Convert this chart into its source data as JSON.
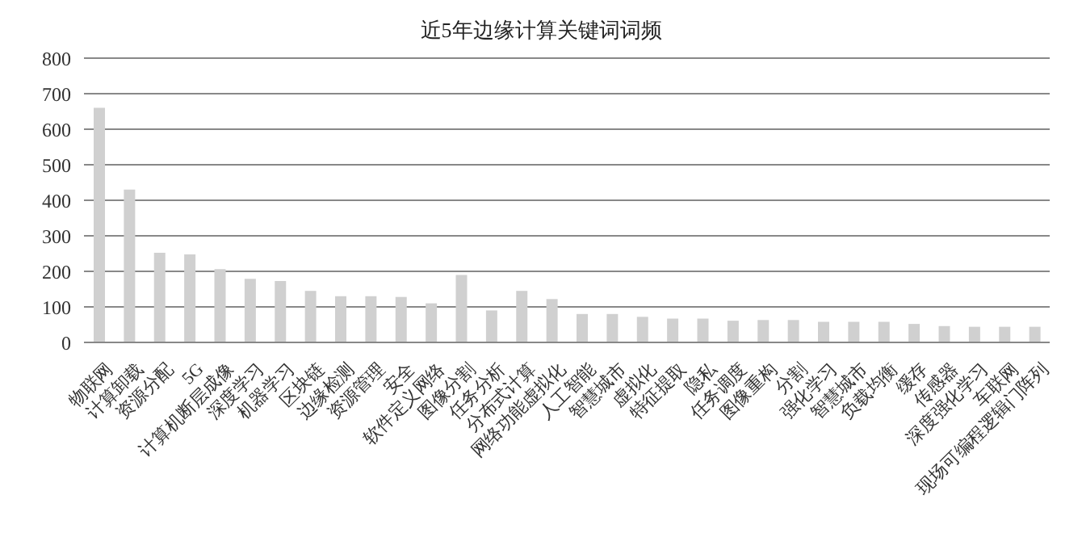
{
  "chart_data": {
    "type": "bar",
    "title": "近5年边缘计算关键词词频",
    "categories": [
      "物联网",
      "计算卸载",
      "资源分配",
      "5G",
      "计算机断层成像",
      "深度学习",
      "机器学习",
      "区块链",
      "边缘检测",
      "资源管理",
      "安全",
      "软件定义网络",
      "图像分割",
      "任务分析",
      "分布式计算",
      "网络功能虚拟化",
      "人工智能",
      "智慧城市",
      "虚拟化",
      "特征提取",
      "隐私",
      "任务调度",
      "图像重构",
      "分割",
      "强化学习",
      "智慧城市",
      "负载均衡",
      "缓存",
      "传感器",
      "深度强化学习",
      "车联网",
      "现场可编程逻辑门阵列"
    ],
    "values": [
      660,
      430,
      252,
      248,
      206,
      179,
      173,
      145,
      130,
      130,
      128,
      110,
      190,
      90,
      145,
      122,
      80,
      80,
      72,
      67,
      67,
      61,
      63,
      63,
      58,
      58,
      58,
      52,
      46,
      44,
      44,
      44
    ],
    "color": "#d0d0d0",
    "ylim": [
      0,
      800
    ],
    "yticks": [
      0,
      100,
      200,
      300,
      400,
      500,
      600,
      700,
      800
    ],
    "grid": "y"
  }
}
